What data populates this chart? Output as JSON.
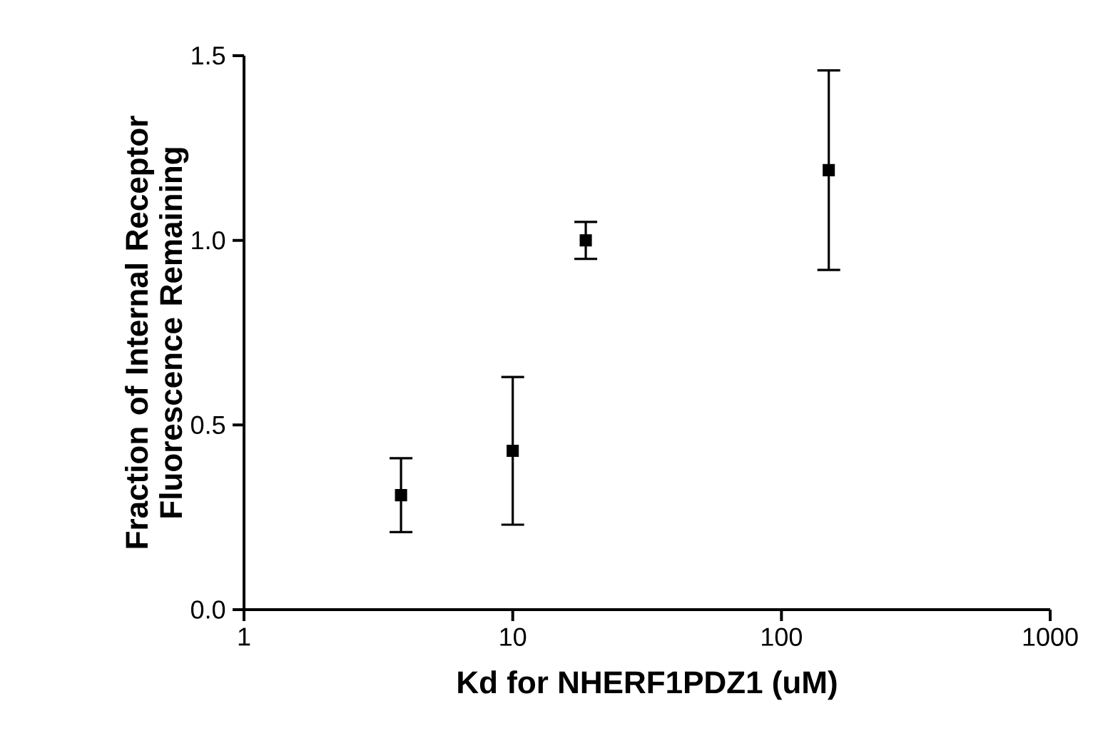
{
  "chart_data": {
    "type": "scatter",
    "xlabel": "Kd for NHERF1PDZ1 (uM)",
    "ylabel": "Fraction of Internal Receptor Fluorescence Remaining",
    "x": [
      3.84,
      10,
      18.7,
      150
    ],
    "values": [
      0.31,
      0.43,
      1.0,
      1.19
    ],
    "errors": [
      0.1,
      0.2,
      0.05,
      0.27
    ],
    "color": "#000000",
    "marker": "square",
    "log": "x",
    "xlim": [
      1,
      1000
    ],
    "ylim": [
      0,
      1.5
    ],
    "xticks": [
      1,
      10,
      100,
      1000
    ],
    "yticks": [
      {
        "value": 0,
        "label": "0.0"
      },
      {
        "value": 0.5,
        "label": "0.5"
      },
      {
        "value": 1,
        "label": "1.0"
      },
      {
        "value": 1.5,
        "label": "1.5"
      }
    ]
  }
}
